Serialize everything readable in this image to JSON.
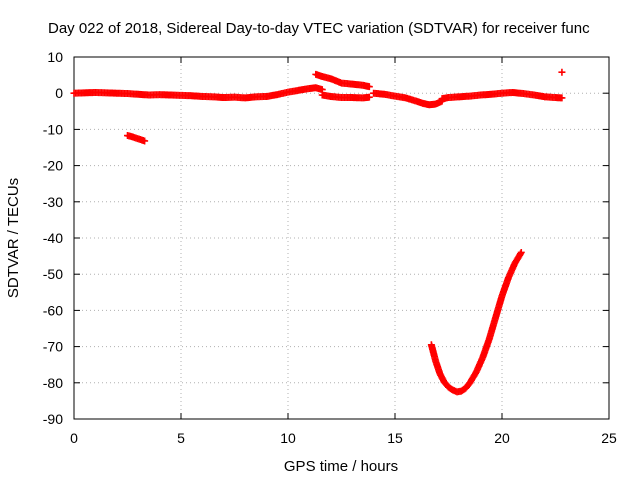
{
  "chart_data": {
    "type": "scatter",
    "title": "Day 022 of 2018, Sidereal Day-to-day VTEC variation (SDTVAR) for receiver func",
    "xlabel": "GPS time / hours",
    "ylabel": "SDTVAR / TECUs",
    "xlim": [
      0,
      25
    ],
    "ylim": [
      -90,
      10
    ],
    "xticks": [
      0,
      5,
      10,
      15,
      20,
      25
    ],
    "yticks": [
      10,
      0,
      -10,
      -20,
      -30,
      -40,
      -50,
      -60,
      -70,
      -80,
      -90
    ],
    "grid": true,
    "marker": "+",
    "series_color": "#ff0000",
    "segments": [
      {
        "name": "baseline-early",
        "x": [
          0.0,
          0.5,
          1.0,
          1.5,
          2.0,
          2.5,
          3.0,
          3.5,
          4.0,
          4.5,
          5.0,
          5.5,
          6.0,
          6.5,
          7.0,
          7.5,
          8.0,
          8.5,
          9.0
        ],
        "y": [
          0.0,
          0.1,
          0.2,
          0.1,
          0.0,
          -0.1,
          -0.3,
          -0.5,
          -0.4,
          -0.5,
          -0.6,
          -0.7,
          -0.9,
          -1.0,
          -1.2,
          -1.1,
          -1.3,
          -1.0,
          -0.9
        ]
      },
      {
        "name": "rise",
        "x": [
          9.0,
          9.5,
          10.0,
          10.5,
          11.0,
          11.3,
          11.6
        ],
        "y": [
          -0.9,
          -0.4,
          0.3,
          0.8,
          1.3,
          1.5,
          1.0
        ]
      },
      {
        "name": "late-hump",
        "x": [
          11.3,
          11.6,
          12.0,
          12.5,
          13.0,
          13.5,
          13.8
        ],
        "y": [
          5.2,
          4.6,
          4.0,
          2.8,
          2.5,
          2.2,
          1.8
        ]
      },
      {
        "name": "lower-branch",
        "x": [
          11.6,
          12.0,
          12.5,
          13.0,
          13.5,
          13.8
        ],
        "y": [
          -0.5,
          -0.9,
          -1.2,
          -1.2,
          -1.3,
          -1.1
        ]
      },
      {
        "name": "mid",
        "x": [
          14.0,
          14.5,
          15.0,
          15.5,
          16.0,
          16.3,
          16.6,
          16.9,
          17.2
        ],
        "y": [
          0.0,
          -0.3,
          -0.8,
          -1.3,
          -2.2,
          -2.8,
          -3.2,
          -3.0,
          -2.2
        ]
      },
      {
        "name": "baseline-late",
        "x": [
          17.2,
          17.5,
          18.0,
          18.5,
          19.0,
          19.5,
          20.0,
          20.5,
          21.0,
          21.5,
          22.0,
          22.5,
          22.8
        ],
        "y": [
          -1.5,
          -1.2,
          -1.0,
          -0.8,
          -0.5,
          -0.3,
          0.0,
          0.2,
          -0.1,
          -0.5,
          -1.0,
          -1.2,
          -1.3
        ]
      },
      {
        "name": "isolated-negative",
        "x": [
          2.5,
          2.7,
          2.9,
          3.1,
          3.3
        ],
        "y": [
          -11.7,
          -12.0,
          -12.4,
          -12.8,
          -13.2
        ]
      },
      {
        "name": "isolated-positive",
        "x": [
          22.8
        ],
        "y": [
          5.8
        ]
      },
      {
        "name": "dip",
        "x": [
          16.7,
          16.9,
          17.1,
          17.3,
          17.5,
          17.7,
          17.9,
          18.1,
          18.3,
          18.5,
          18.8,
          19.1,
          19.4,
          19.7,
          20.0,
          20.3,
          20.6,
          20.9
        ],
        "y": [
          -69.5,
          -74.0,
          -77.5,
          -79.8,
          -81.2,
          -82.0,
          -82.5,
          -82.3,
          -81.5,
          -80.0,
          -77.0,
          -73.0,
          -68.0,
          -62.0,
          -56.0,
          -51.0,
          -47.0,
          -44.0
        ]
      }
    ]
  }
}
